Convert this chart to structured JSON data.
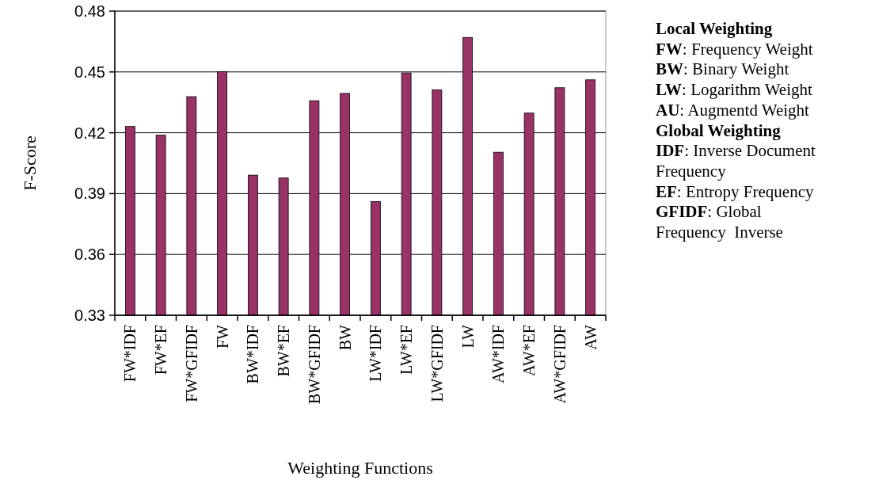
{
  "chart_data": {
    "type": "bar",
    "xlabel": "Weighting Functions",
    "ylabel": "F-Score",
    "categories": [
      "FW*IDF",
      "FW*EF",
      "FW*GFIDF",
      "FW",
      "BW*IDF",
      "BW*EF",
      "BW*GFIDF",
      "BW",
      "LW*IDF",
      "LW*EF",
      "LW*GFIDF",
      "LW",
      "AW*IDF",
      "AW*EF",
      "AW*GFIDF",
      "AW"
    ],
    "values": [
      0.4231,
      0.4188,
      0.4378,
      0.4501,
      0.3991,
      0.3977,
      0.4358,
      0.4394,
      0.3861,
      0.4495,
      0.4412,
      0.467,
      0.4104,
      0.4297,
      0.4422,
      0.4461
    ],
    "color": "#993366",
    "ylim": [
      0.33,
      0.48
    ],
    "yticks": [
      0.33,
      0.36,
      0.39,
      0.42,
      0.45,
      0.48
    ],
    "grid": "y",
    "annotations": [
      "Local Weighting",
      "FW: Frequency Weight",
      "BW: Binary Weight",
      "LW: Logarithm Weight",
      "AU: Augmentd Weight",
      "Global Weighting",
      "IDF: Inverse Document Frequency",
      "EF: Entropy Frequency",
      "GFIDF: Global Frequency  Inverse"
    ]
  }
}
